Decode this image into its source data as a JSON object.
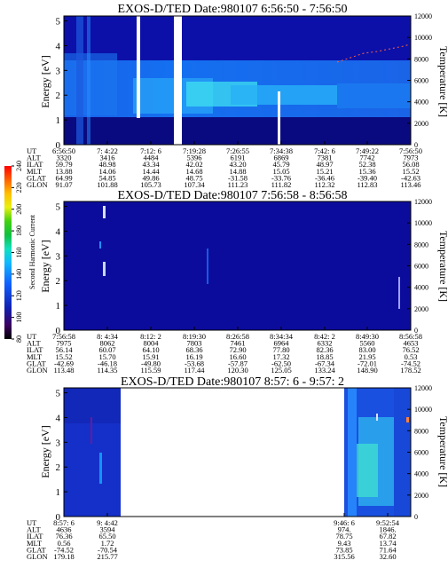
{
  "colorbar": {
    "label": "Second Harmonic Current",
    "ticks": [
      "80",
      "100",
      "120",
      "140",
      "160",
      "180",
      "200",
      "220",
      "240"
    ]
  },
  "row_labels": [
    "UT",
    "ALT",
    "ILAT",
    "MLT",
    "GLAT",
    "GLON"
  ],
  "chart_data": [
    {
      "type": "heatmap",
      "title": "EXOS-D/TED   Date:980107   6:56:50 - 7:56:50",
      "ylabel": "Energy [eV]",
      "y2label": "Temperature [K]",
      "ylim": [
        0,
        5.2
      ],
      "y2lim": [
        0,
        12000
      ],
      "yticks": [
        "0",
        "1",
        "2",
        "3",
        "4",
        "5"
      ],
      "y2ticks": [
        "0",
        "2000",
        "4000",
        "6000",
        "8000",
        "10000",
        "12000"
      ],
      "columns": [
        {
          "UT": "6:56:50",
          "ALT": "3320",
          "ILAT": "59.79",
          "MLT": "13.88",
          "GLAT": "64.99",
          "GLON": "91.07"
        },
        {
          "UT": "7: 4:22",
          "ALT": "3416",
          "ILAT": "48.98",
          "MLT": "14.06",
          "GLAT": "54.85",
          "GLON": "101.88"
        },
        {
          "UT": "7:12: 6",
          "ALT": "4484",
          "ILAT": "43.34",
          "MLT": "14.44",
          "GLAT": "49.86",
          "GLON": "105.73"
        },
        {
          "UT": "7:19:28",
          "ALT": "5396",
          "ILAT": "42.02",
          "MLT": "14.68",
          "GLAT": "48.75",
          "GLON": "107.34"
        },
        {
          "UT": "7:26:55",
          "ALT": "6191",
          "ILAT": "43.20",
          "MLT": "14.88",
          "GLAT": "-31.58",
          "GLON": "111.23"
        },
        {
          "UT": "7:34:38",
          "ALT": "6869",
          "ILAT": "45.79",
          "MLT": "15.05",
          "GLAT": "-33.76",
          "GLON": "111.82"
        },
        {
          "UT": "7:42: 6",
          "ALT": "7381",
          "ILAT": "48.97",
          "MLT": "15.21",
          "GLAT": "-36.46",
          "GLON": "112.32"
        },
        {
          "UT": "7:49:22",
          "ALT": "7742",
          "ILAT": "52.38",
          "MLT": "15.36",
          "GLAT": "-39.40",
          "GLON": "112.83"
        },
        {
          "UT": "7:56:50",
          "ALT": "7973",
          "ILAT": "56.08",
          "MLT": "15.52",
          "GLAT": "-42.63",
          "GLON": "113.46"
        }
      ]
    },
    {
      "type": "heatmap",
      "title": "EXOS-D/TED   Date:980107   7:56:58 - 8:56:58",
      "ylabel": "Energy [eV]",
      "y2label": "Temperature [K]",
      "ylim": [
        0,
        5.2
      ],
      "y2lim": [
        0,
        12000
      ],
      "yticks": [
        "0",
        "1",
        "2",
        "3",
        "4",
        "5"
      ],
      "y2ticks": [
        "0",
        "2000",
        "4000",
        "6000",
        "8000",
        "10000",
        "12000"
      ],
      "columns": [
        {
          "UT": "7:56:58",
          "ALT": "7975",
          "ILAT": "56.14",
          "MLT": "15.52",
          "GLAT": "-42.69",
          "GLON": "113.48"
        },
        {
          "UT": "8: 4:34",
          "ALT": "8062",
          "ILAT": "60.07",
          "MLT": "15.70",
          "GLAT": "-46.18",
          "GLON": "114.35"
        },
        {
          "UT": "8:12: 2",
          "ALT": "8004",
          "ILAT": "64.10",
          "MLT": "15.91",
          "GLAT": "-49.80",
          "GLON": "115.59"
        },
        {
          "UT": "8:19:30",
          "ALT": "7803",
          "ILAT": "68.36",
          "MLT": "16.19",
          "GLAT": "-53.68",
          "GLON": "117.44"
        },
        {
          "UT": "8:26:58",
          "ALT": "7461",
          "ILAT": "72.90",
          "MLT": "16.60",
          "GLAT": "-57.87",
          "GLON": "120.30"
        },
        {
          "UT": "8:34:34",
          "ALT": "6964",
          "ILAT": "77.80",
          "MLT": "17.32",
          "GLAT": "-62.50",
          "GLON": "125.05"
        },
        {
          "UT": "8:42: 2",
          "ALT": "6332",
          "ILAT": "82.36",
          "MLT": "18.85",
          "GLAT": "-67.34",
          "GLON": "133.24"
        },
        {
          "UT": "8:49:30",
          "ALT": "5560",
          "ILAT": "83.00",
          "MLT": "21.95",
          "GLAT": "-72.01",
          "GLON": "148.90"
        },
        {
          "UT": "8:56:58",
          "ALT": "4653",
          "ILAT": "76.52",
          "MLT": "0.53",
          "GLAT": "-74.52",
          "GLON": "178.52"
        }
      ]
    },
    {
      "type": "heatmap",
      "title": "EXOS-D/TED   Date:980107   8:57: 6 - 9:57: 2",
      "ylabel": "Energy [eV]",
      "y2label": "Temperature [K]",
      "ylim": [
        0,
        5.2
      ],
      "y2lim": [
        0,
        12000
      ],
      "yticks": [
        "0",
        "1",
        "2",
        "3",
        "4",
        "5"
      ],
      "y2ticks": [
        "0",
        "2000",
        "4000",
        "6000",
        "8000",
        "10000",
        "12000"
      ],
      "columns": [
        {
          "UT": "8:57: 6",
          "ALT": "4636",
          "ILAT": "76.36",
          "MLT": "0.56",
          "GLAT": "-74.52",
          "GLON": "179.18"
        },
        {
          "UT": "9: 4:42",
          "ALT": "3594",
          "ILAT": "65.50",
          "MLT": "1.72",
          "GLAT": "-70.54",
          "GLON": "215.77"
        },
        {
          "UT": "9:46: 6",
          "ALT": "974.",
          "ILAT": "78.75",
          "MLT": "9.43",
          "GLAT": "73.85",
          "GLON": "315.56"
        },
        {
          "UT": "9:52:54",
          "ALT": "1846.",
          "ILAT": "67.82",
          "MLT": "13.74",
          "GLAT": "71.64",
          "GLON": "32.60"
        }
      ]
    }
  ]
}
